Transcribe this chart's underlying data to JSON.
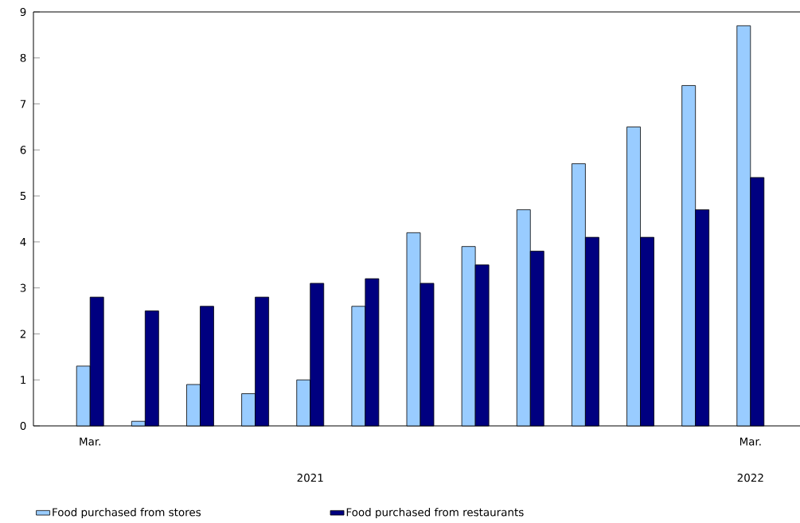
{
  "chart_data": {
    "type": "bar",
    "categories": [
      "Mar.",
      null,
      null,
      null,
      null,
      null,
      null,
      null,
      null,
      null,
      null,
      null,
      "Mar."
    ],
    "series": [
      {
        "name": "Food purchased from stores",
        "color": "#99ccff",
        "values": [
          1.3,
          0.1,
          0.9,
          0.7,
          1.0,
          2.6,
          4.2,
          3.9,
          4.7,
          5.7,
          6.5,
          7.4,
          8.7
        ]
      },
      {
        "name": "Food purchased from restaurants",
        "color": "#000080",
        "values": [
          2.8,
          2.5,
          2.6,
          2.8,
          3.1,
          3.2,
          3.1,
          3.5,
          3.8,
          4.1,
          4.1,
          4.7,
          5.4
        ]
      }
    ],
    "ylim": [
      0,
      9
    ],
    "yticks": [
      0,
      1,
      2,
      3,
      4,
      5,
      6,
      7,
      8,
      9
    ],
    "annotations": [
      "2021",
      "2022"
    ],
    "legend": "bottom"
  }
}
